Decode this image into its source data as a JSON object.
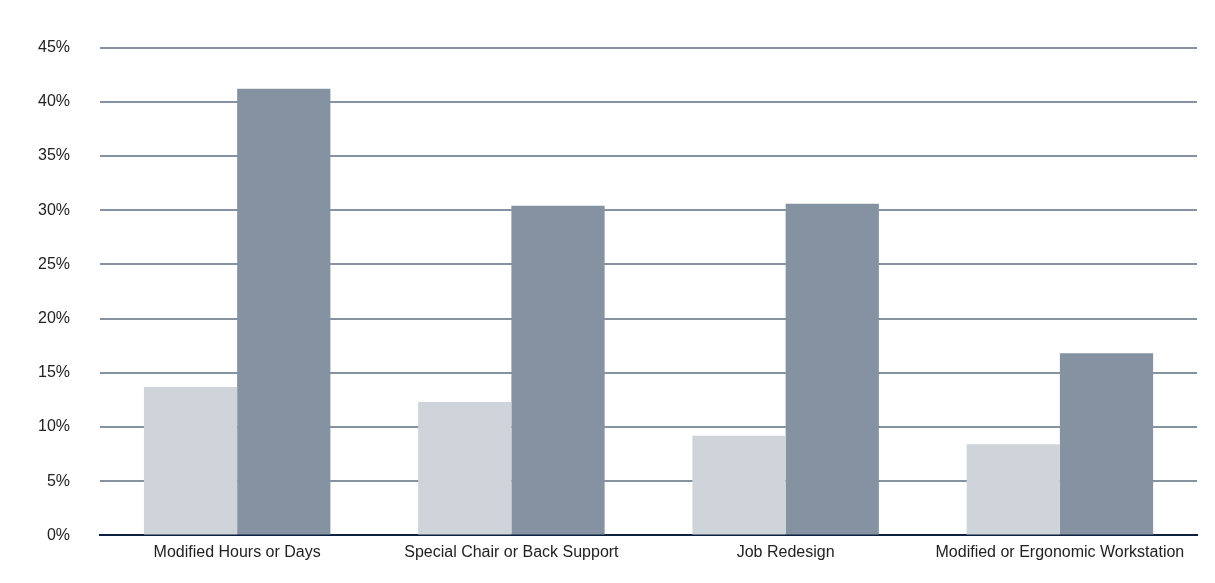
{
  "chart_data": {
    "type": "bar",
    "categories": [
      "Modified Hours or Days",
      "Special Chair or Back Support",
      "Job Redesign",
      "Modified or Ergonomic Workstation"
    ],
    "series": [
      {
        "color": "#cfd3da",
        "values": [
          13.7,
          12.3,
          9.2,
          8.4
        ]
      },
      {
        "color": "#8592a2",
        "values": [
          41.2,
          30.4,
          30.6,
          16.8
        ]
      }
    ],
    "ylim": [
      0,
      45
    ],
    "yticks": [
      {
        "value": 0,
        "label": "0%"
      },
      {
        "value": 5,
        "label": "5%"
      },
      {
        "value": 10,
        "label": "10%"
      },
      {
        "value": 15,
        "label": "15%"
      },
      {
        "value": 20,
        "label": "20%"
      },
      {
        "value": 25,
        "label": "25%"
      },
      {
        "value": 30,
        "label": "30%"
      },
      {
        "value": 35,
        "label": "35%"
      },
      {
        "value": 40,
        "label": "40%"
      },
      {
        "value": 45,
        "label": "45%"
      }
    ],
    "grid": "y",
    "legend": false
  }
}
